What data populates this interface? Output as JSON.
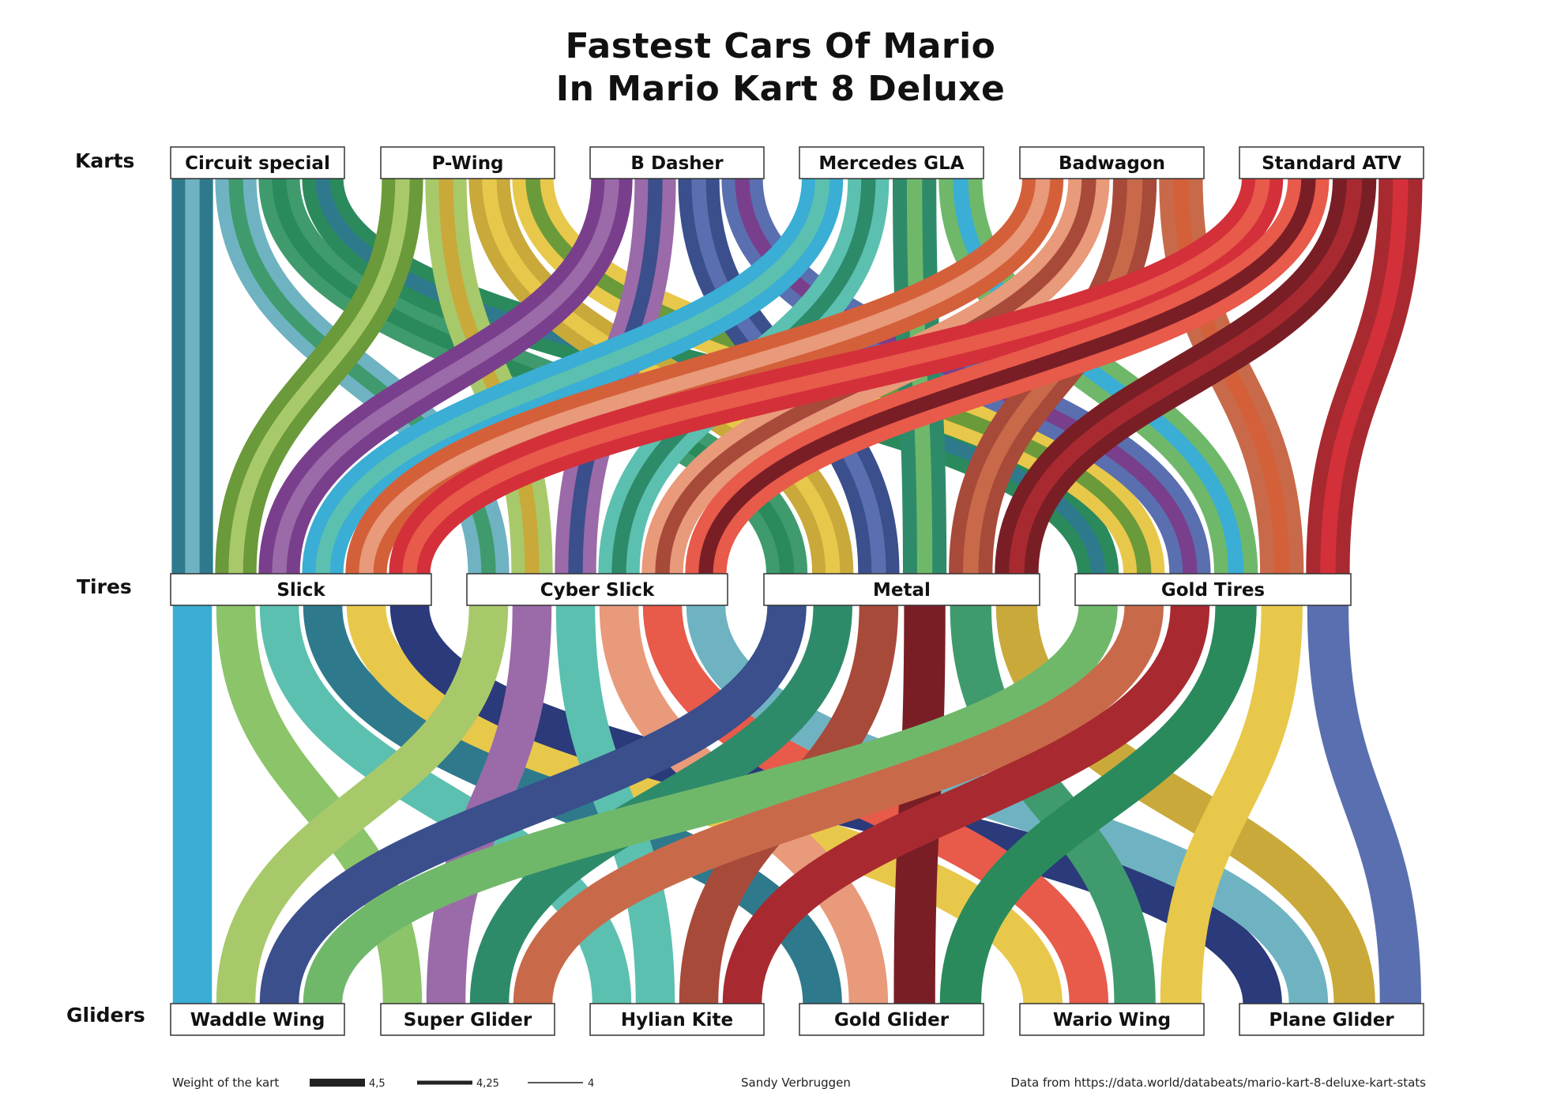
{
  "title_lines": [
    "Fastest Cars Of Mario",
    "In Mario Kart 8 Deluxe"
  ],
  "stage_labels": [
    "Karts",
    "Tires",
    "Gliders"
  ],
  "karts": [
    "Circuit special",
    "P-Wing",
    "B Dasher",
    "Mercedes GLA",
    "Badwagon",
    "Standard ATV"
  ],
  "tires": [
    "Slick",
    "Cyber Slick",
    "Metal",
    "Gold Tires"
  ],
  "gliders": [
    "Waddle Wing",
    "Super Glider",
    "Hylian Kite",
    "Gold Glider",
    "Wario Wing",
    "Plane Glider"
  ],
  "legend": {
    "title": "Weight of the kart",
    "items": [
      {
        "label": "4,5",
        "weight": 4.5
      },
      {
        "label": "4,25",
        "weight": 4.25
      },
      {
        "label": "4",
        "weight": 4
      }
    ]
  },
  "credit": "Sandy Verbruggen",
  "source": "Data from https://data.world/databeats/mario-kart-8-deluxe-kart-stats",
  "colors": {
    "kart_palettes": [
      [
        "#2e7a8c",
        "#6fb3c2",
        "#3f9b6e",
        "#2a8a5c"
      ],
      [
        "#6b9a3a",
        "#a8c96a",
        "#c9a93a",
        "#e8c84a"
      ],
      [
        "#7a3f8c",
        "#9b6aa8",
        "#3a4f8c",
        "#5a6fb0"
      ],
      [
        "#3aaed4",
        "#5cc0b0",
        "#2e8b6a",
        "#6fb86a"
      ],
      [
        "#d4603a",
        "#e89a7a",
        "#a84a3a",
        "#c86a4a"
      ],
      [
        "#d4303a",
        "#e85a4a",
        "#7a1e26",
        "#a82a30"
      ]
    ],
    "glider_colors": [
      "#3aaed4",
      "#8cc46a",
      "#5cc0b0",
      "#2e7a8c",
      "#e8c84a",
      "#2a3a7a"
    ],
    "tire_colors": [
      "#2e7a8c",
      "#6b9a3a",
      "#6e2e7a",
      "#d4303a"
    ]
  }
}
